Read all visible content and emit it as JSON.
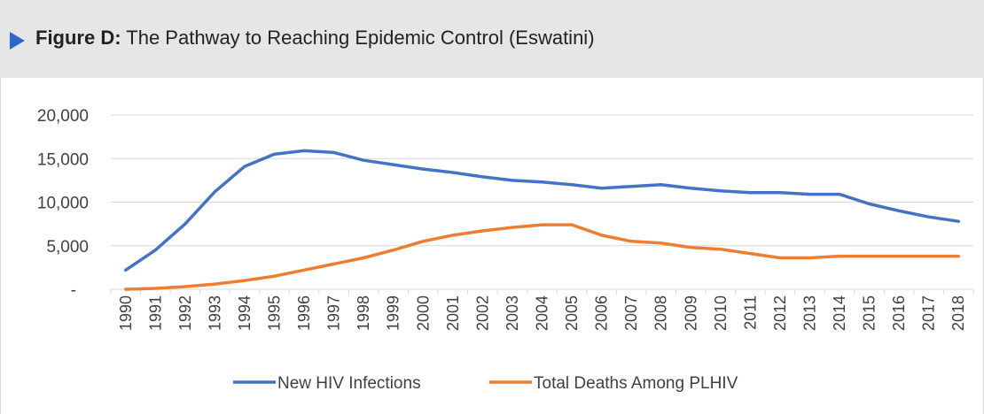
{
  "header": {
    "prefix": "Figure D:",
    "title": "The Pathway to Reaching Epidemic Control (Eswatini)"
  },
  "colors": {
    "header_bg": "#e6e6e6",
    "accent": "#2e67c8",
    "series_infections": "#4472c4",
    "series_deaths": "#ed7d31",
    "grid": "#d9d9d9"
  },
  "chart_data": {
    "type": "line",
    "x": [
      "1990",
      "1991",
      "1992",
      "1993",
      "1994",
      "1995",
      "1996",
      "1997",
      "1998",
      "1999",
      "2000",
      "2001",
      "2002",
      "2003",
      "2004",
      "2005",
      "2006",
      "2007",
      "2008",
      "2009",
      "2010",
      "2011",
      "2012",
      "2013",
      "2014",
      "2015",
      "2016",
      "2017",
      "2018"
    ],
    "series": [
      {
        "name": "New HIV Infections",
        "color": "#4472c4",
        "values": [
          2200,
          4500,
          7500,
          11200,
          14100,
          15500,
          15900,
          15700,
          14800,
          14300,
          13800,
          13400,
          12900,
          12500,
          12300,
          12000,
          11600,
          11800,
          12000,
          11600,
          11300,
          11100,
          11100,
          10900,
          10900,
          9800,
          9000,
          8300,
          7800
        ]
      },
      {
        "name": "Total Deaths Among PLHIV",
        "color": "#ed7d31",
        "values": [
          0,
          100,
          300,
          600,
          1000,
          1500,
          2200,
          2900,
          3600,
          4500,
          5500,
          6200,
          6700,
          7100,
          7400,
          7400,
          6200,
          5500,
          5300,
          4800,
          4600,
          4100,
          3600,
          3600,
          3800,
          3800,
          3800,
          3800,
          3800
        ]
      }
    ],
    "ylim": [
      0,
      20000
    ],
    "yticks": [
      0,
      5000,
      10000,
      15000,
      20000
    ],
    "ytick_labels": [
      "-",
      "5,000",
      "10,000",
      "15,000",
      "20,000"
    ],
    "grid": true,
    "legend": "bottom"
  }
}
